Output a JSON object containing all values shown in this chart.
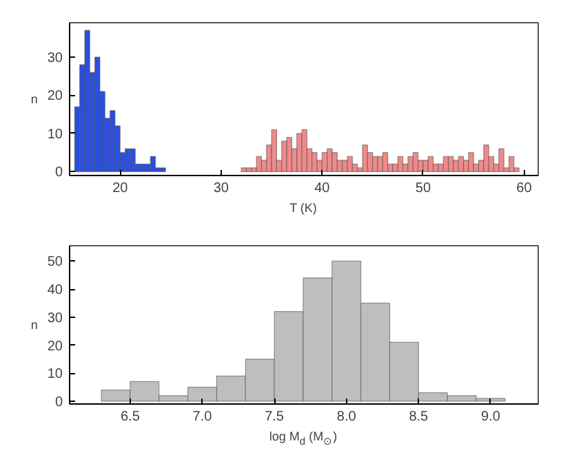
{
  "chart_data": [
    {
      "type": "histogram",
      "xlabel": "T (K)",
      "ylabel": "n",
      "xlim": [
        15,
        61.4
      ],
      "ylim": [
        -1,
        39
      ],
      "xticks": [
        20,
        30,
        40,
        50,
        60
      ],
      "yticks": [
        0,
        10,
        20,
        30
      ],
      "grid": false,
      "bins": [
        15.5,
        16,
        16.5,
        17,
        17.5,
        18,
        18.5,
        19,
        19.5,
        20,
        20.5,
        21,
        21.5,
        22,
        22.5,
        23,
        23.5,
        24,
        24.5,
        25,
        25.5,
        26,
        26.5,
        27,
        27.5,
        28,
        28.5,
        29,
        29.5,
        30,
        30.5,
        31,
        31.5,
        32,
        32.5,
        33,
        33.5,
        34,
        34.5,
        35,
        35.5,
        36,
        36.5,
        37,
        37.5,
        38,
        38.5,
        39,
        39.5,
        40,
        40.5,
        41,
        41.5,
        42,
        42.5,
        43,
        43.5,
        44,
        44.5,
        45,
        45.5,
        46,
        46.5,
        47,
        47.5,
        48,
        48.5,
        49,
        49.5,
        50,
        50.5,
        51,
        51.5,
        52,
        52.5,
        53,
        53.5,
        54,
        54.5,
        55,
        55.5,
        56,
        56.5,
        57,
        57.5,
        58,
        58.5,
        59,
        59.5
      ],
      "values": [
        17,
        28,
        37,
        26,
        30,
        21,
        14,
        16,
        12,
        5,
        6,
        6,
        2,
        2,
        2,
        4,
        1,
        1,
        null,
        null,
        null,
        null,
        null,
        null,
        null,
        null,
        null,
        null,
        null,
        null,
        null,
        null,
        null,
        1,
        1,
        1,
        4,
        3,
        7,
        11,
        3,
        8,
        9,
        6,
        10,
        11,
        6,
        5,
        3,
        5,
        6,
        5,
        3,
        3,
        4,
        2,
        1,
        7,
        5,
        4,
        4,
        5,
        2,
        2,
        4,
        2,
        4,
        5,
        3,
        3,
        4,
        2,
        2,
        4,
        4,
        3,
        4,
        3,
        5,
        2,
        3,
        7,
        4,
        2,
        6,
        1,
        4,
        1
      ],
      "colors": [
        "#2a4fe0",
        "#2a4fe0",
        "#2a4fe0",
        "#2a4fe0",
        "#2a4fe0",
        "#2a4fe0",
        "#2a4fe0",
        "#2a4fe0",
        "#2a4fe0",
        "#2a4fe0",
        "#2a4fe0",
        "#2a4fe0",
        "#2a4fe0",
        "#2a4fe0",
        "#2a4fe0",
        "#2a4fe0",
        "#2a4fe0",
        "#2a4fe0",
        "#2a4fe0",
        "#2a4fe0",
        "#2a4fe0",
        "#2a4fe0",
        "#2a4fe0",
        "#2a4fe0",
        "#2a4fe0",
        "#2a4fe0",
        "#2a4fe0",
        "#2a4fe0",
        "#2a4fe0",
        "#2a4fe0",
        "#2a4fe0",
        "#2a4fe0",
        "#2a4fe0",
        "#f08a8a",
        "#f08a8a",
        "#f08a8a",
        "#f08a8a",
        "#f08a8a",
        "#f08a8a",
        "#f08a8a",
        "#f08a8a",
        "#f08a8a",
        "#f08a8a",
        "#f08a8a",
        "#f08a8a",
        "#f08a8a",
        "#f08a8a",
        "#f08a8a",
        "#f08a8a",
        "#f08a8a",
        "#f08a8a",
        "#f08a8a",
        "#f08a8a",
        "#f08a8a",
        "#f08a8a",
        "#f08a8a",
        "#f08a8a",
        "#f08a8a",
        "#f08a8a",
        "#f08a8a",
        "#f08a8a",
        "#f08a8a",
        "#f08a8a",
        "#f08a8a",
        "#f08a8a",
        "#f08a8a",
        "#f08a8a",
        "#f08a8a",
        "#f08a8a",
        "#f08a8a",
        "#f08a8a",
        "#f08a8a",
        "#f08a8a",
        "#f08a8a",
        "#f08a8a",
        "#f08a8a",
        "#f08a8a",
        "#f08a8a",
        "#f08a8a",
        "#f08a8a",
        "#f08a8a",
        "#f08a8a",
        "#f08a8a",
        "#f08a8a",
        "#f08a8a",
        "#f08a8a",
        "#f08a8a",
        "#f08a8a"
      ]
    },
    {
      "type": "histogram",
      "xlabel": "log M$_{d}$ (M$_{⊙}$)",
      "ylabel": "n",
      "xlim": [
        6.08,
        9.33
      ],
      "ylim": [
        -1,
        55.5
      ],
      "xticks": [
        6.5,
        {
          "value": 7,
          "label": "7.0"
        },
        7.5,
        {
          "value": 8,
          "label": "8.0"
        },
        8.5,
        {
          "value": 9,
          "label": "9.0"
        }
      ],
      "yticks": [
        0,
        10,
        20,
        30,
        40,
        50
      ],
      "grid": false,
      "bins": [
        6.3,
        6.5,
        6.7,
        6.9,
        7.1,
        7.3,
        7.5,
        7.7,
        7.9,
        8.1,
        8.3,
        8.5,
        8.7,
        8.9,
        9.1
      ],
      "values": [
        4,
        7,
        2,
        5,
        9,
        15,
        32,
        44,
        50,
        35,
        21,
        3,
        2,
        1
      ],
      "color": "#bebebe"
    }
  ]
}
